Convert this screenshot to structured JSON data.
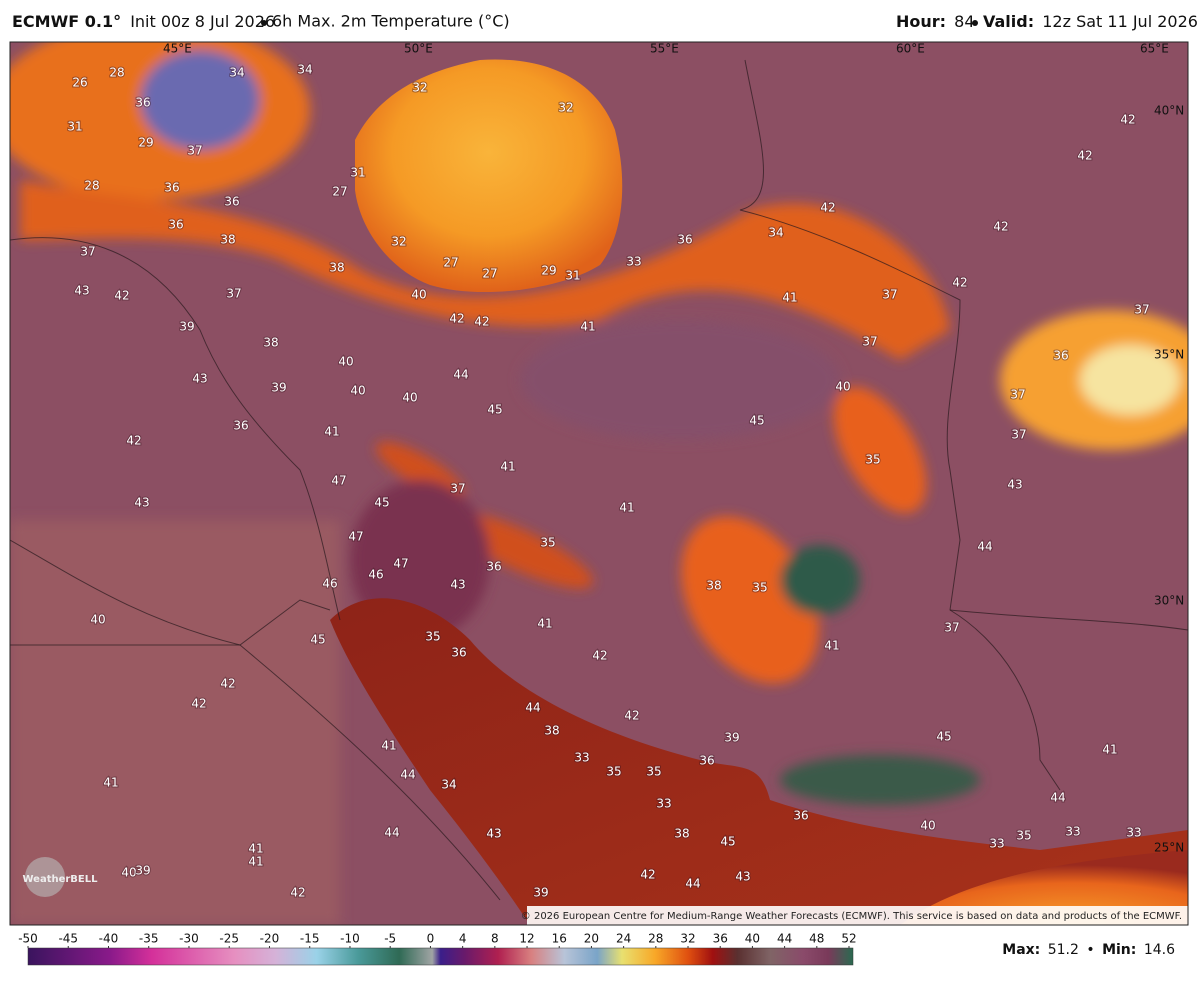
{
  "header": {
    "title": "ECMWF 0.1°",
    "init": "Init 00z 8 Jul 2026",
    "product": "6h Max. 2m Temperature (°C)",
    "hour_label": "Hour:",
    "hour": "84",
    "valid_label": "Valid:",
    "valid": "12z Sat 11 Jul 2026"
  },
  "map": {
    "lon_labels": [
      "45°E",
      "50°E",
      "55°E",
      "60°E",
      "65°E"
    ],
    "lat_labels": [
      "40°N",
      "35°N",
      "30°N",
      "25°N"
    ],
    "temperature_labels": [
      34,
      34,
      26,
      28,
      36,
      32,
      32,
      31,
      29,
      37,
      31,
      36,
      28,
      36,
      27,
      36,
      38,
      32,
      37,
      38,
      27,
      27,
      29,
      31,
      33,
      36,
      34,
      42,
      42,
      42,
      42,
      43,
      42,
      37,
      40,
      42,
      42,
      41,
      41,
      37,
      42,
      37,
      39,
      38,
      40,
      36,
      37,
      43,
      39,
      40,
      44,
      40,
      45,
      40,
      37,
      37,
      36,
      41,
      42,
      45,
      41,
      35,
      43,
      47,
      37,
      43,
      45,
      41,
      47,
      35,
      44,
      36,
      47,
      46,
      46,
      43,
      38,
      35,
      40,
      41,
      35,
      45,
      36,
      41,
      37,
      42,
      42,
      42,
      44,
      42,
      38,
      45,
      39,
      41,
      41,
      33,
      35,
      35,
      36,
      44,
      41,
      34,
      44,
      33,
      36,
      44,
      43,
      38,
      45,
      40,
      33,
      35,
      33,
      33,
      41,
      41,
      40,
      39,
      42,
      42,
      44,
      43,
      39
    ],
    "copyright": "© 2026 European Centre for Medium-Range Weather Forecasts (ECMWF). This service is based on data and products of the ECMWF.",
    "logo": "WeatherBELL"
  },
  "colorbar": {
    "ticks": [
      -50,
      -45,
      -40,
      -35,
      -30,
      -25,
      -20,
      -15,
      -10,
      -5,
      0,
      4,
      8,
      12,
      16,
      20,
      24,
      28,
      32,
      36,
      40,
      44,
      48,
      52
    ],
    "lim": [
      -50,
      52
    ]
  },
  "stats": {
    "max_label": "Max:",
    "max": 51.2,
    "min_label": "Min:",
    "min": 14.6
  }
}
